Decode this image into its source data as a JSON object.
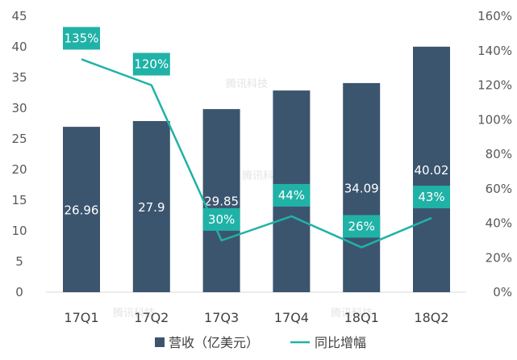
{
  "chart_data": {
    "type": "bar",
    "categories": [
      "17Q1",
      "17Q2",
      "17Q3",
      "17Q4",
      "18Q1",
      "18Q2"
    ],
    "series": [
      {
        "name": "营收（亿美元）",
        "type": "bar",
        "axis": "left",
        "color": "#3c556e",
        "values": [
          26.96,
          27.9,
          29.85,
          32.88,
          34.09,
          40.02
        ],
        "labels": [
          "26.96",
          "27.9",
          "29.85",
          "32.88",
          "34.09",
          "40.02"
        ]
      },
      {
        "name": "同比增幅",
        "type": "line",
        "axis": "right",
        "color": "#20b2a6",
        "values": [
          135,
          120,
          30,
          44,
          26,
          43
        ],
        "labels": [
          "135%",
          "120%",
          "30%",
          "44%",
          "26%",
          "43%"
        ]
      }
    ],
    "left_axis": {
      "ylim": [
        0,
        45
      ],
      "ticks": [
        0,
        5,
        10,
        15,
        20,
        25,
        30,
        35,
        40,
        45
      ],
      "tick_labels": [
        "0",
        "5",
        "10",
        "15",
        "20",
        "25",
        "30",
        "35",
        "40",
        "45"
      ]
    },
    "right_axis": {
      "ylim": [
        0,
        160
      ],
      "ticks": [
        0,
        20,
        40,
        60,
        80,
        100,
        120,
        140,
        160
      ],
      "tick_labels": [
        "0%",
        "20%",
        "40%",
        "60%",
        "80%",
        "100%",
        "120%",
        "140%",
        "160%"
      ]
    },
    "grid": false,
    "legend_position": "bottom"
  },
  "watermark": "腾讯科技"
}
